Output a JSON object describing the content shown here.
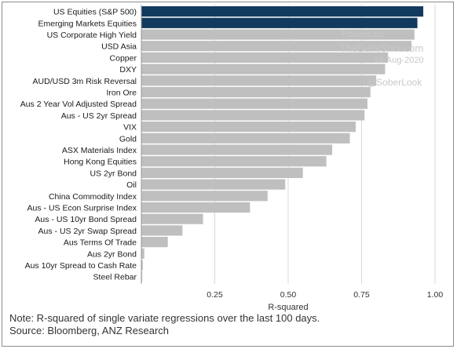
{
  "watermark": {
    "line1": "Posted on",
    "line2": "TheDailyShot.com",
    "line3": "18-Aug-2020",
    "line4": "@SoberLook"
  },
  "footer": {
    "note": "Note: R-squared of single variate regressions over the last 100 days.",
    "source": "Source: Bloomberg, ANZ Research"
  },
  "colors": {
    "highlight": "#123a5e",
    "bar": "#bfbfbf",
    "grid": "#d9d9d9"
  },
  "chart_data": {
    "type": "bar",
    "orientation": "horizontal",
    "xlabel": "R-squared",
    "xlim": [
      0,
      1
    ],
    "xticks": [
      "0.25",
      "0.50",
      "0.75",
      "1.00"
    ],
    "xtick_values": [
      0.25,
      0.5,
      0.75,
      1.0
    ],
    "grid": true,
    "categories": [
      "US Equities (S&P 500)",
      "Emerging Markets Equities",
      "US Corporate High Yield",
      "USD Asia",
      "Copper",
      "DXY",
      "AUD/USD 3m Risk Reversal",
      "Iron Ore",
      "Aus 2 Year Vol Adjusted Spread",
      "Aus - US 2yr Spread",
      "VIX",
      "Gold",
      "ASX Materials Index",
      "Hong Kong Equities",
      "US 2yr Bond",
      "Oil",
      "China Commodity Index",
      "Aus - US Econ Surprise Index",
      "Aus - US 10yr Bond Spread",
      "Aus - US 2yr Swap Spread",
      "Aus Terms Of Trade",
      "Aus 2yr Bond",
      "Aus 10yr Spread to Cash Rate",
      "Steel Rebar"
    ],
    "values": [
      0.96,
      0.94,
      0.93,
      0.92,
      0.84,
      0.83,
      0.8,
      0.78,
      0.77,
      0.76,
      0.73,
      0.71,
      0.65,
      0.63,
      0.55,
      0.49,
      0.43,
      0.37,
      0.21,
      0.14,
      0.09,
      0.01,
      0.005,
      0.003
    ],
    "highlighted": [
      0,
      1
    ]
  }
}
